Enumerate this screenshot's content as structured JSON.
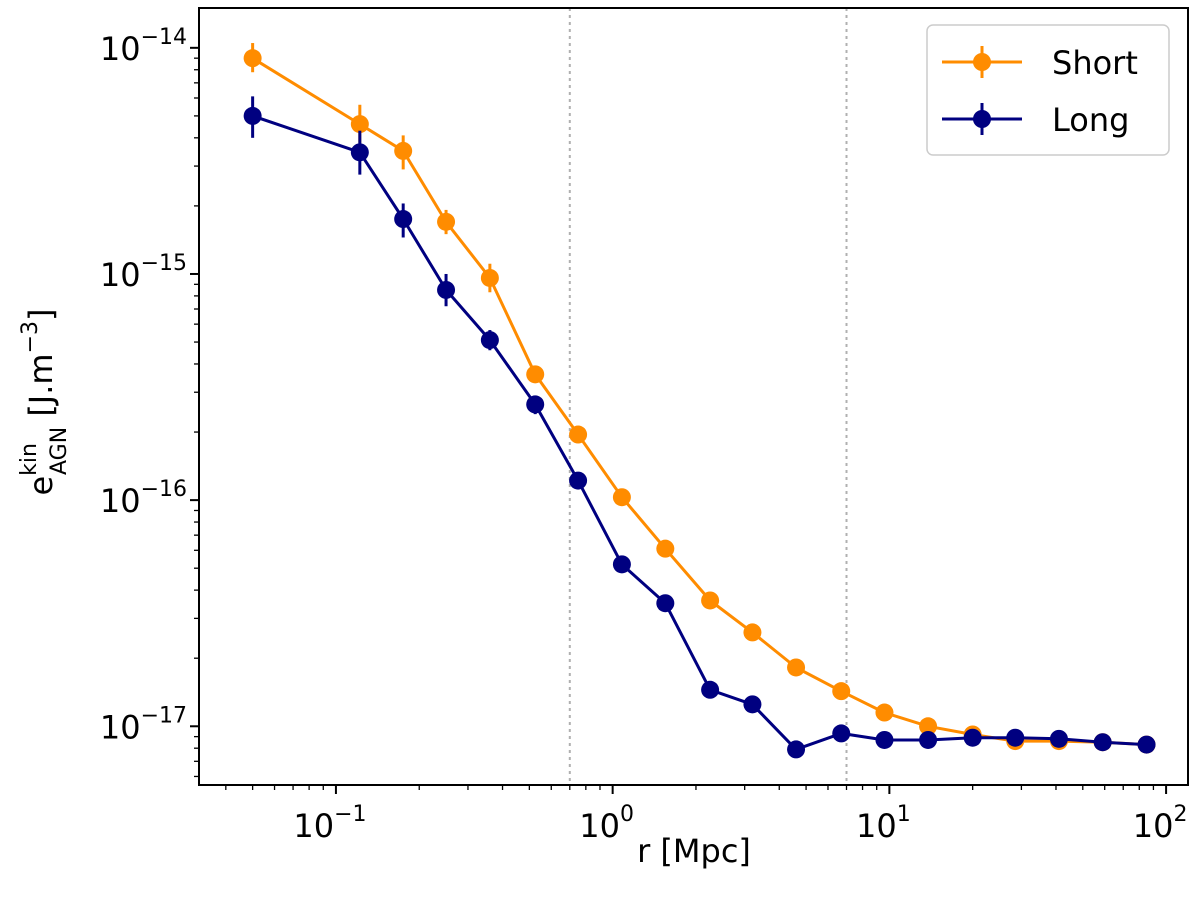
{
  "chart_data": {
    "type": "line",
    "xscale": "log",
    "yscale": "log",
    "xlim": [
      0.032,
      120
    ],
    "ylim": [
      5.5e-18,
      1.5e-14
    ],
    "xlabel": "r [Mpc]",
    "ylabel": {
      "base": "e",
      "sup": "kin",
      "sub": "AGN",
      "unit_prefix": " [J.m",
      "unit_exp": "−3",
      "unit_suffix": "]"
    },
    "x_ticks": [
      {
        "value": 0.1,
        "base": "10",
        "exp": "−1"
      },
      {
        "value": 1,
        "base": "10",
        "exp": "0"
      },
      {
        "value": 10,
        "base": "10",
        "exp": "1"
      },
      {
        "value": 100,
        "base": "10",
        "exp": "2"
      }
    ],
    "y_ticks": [
      {
        "value": 1e-17,
        "base": "10",
        "exp": "−17"
      },
      {
        "value": 1e-16,
        "base": "10",
        "exp": "−16"
      },
      {
        "value": 1e-15,
        "base": "10",
        "exp": "−15"
      },
      {
        "value": 1e-14,
        "base": "10",
        "exp": "−14"
      }
    ],
    "vlines": [
      0.7,
      7.0
    ],
    "legend_position": "top-right",
    "series": [
      {
        "name": "Short",
        "color": "#ff8c00",
        "x": [
          0.05,
          0.122,
          0.175,
          0.25,
          0.36,
          0.525,
          0.75,
          1.08,
          1.55,
          2.25,
          3.2,
          4.6,
          6.7,
          9.6,
          13.8,
          20,
          28.5,
          41,
          59,
          85
        ],
        "y": [
          9e-15,
          4.6e-15,
          3.5e-15,
          1.7e-15,
          9.6e-16,
          3.6e-16,
          1.95e-16,
          1.03e-16,
          6.1e-17,
          3.6e-17,
          2.6e-17,
          1.82e-17,
          1.43e-17,
          1.15e-17,
          1e-17,
          9.2e-18,
          8.6e-18,
          8.6e-18,
          8.5e-18,
          8.3e-18
        ],
        "err_low": [
          7.8e-15,
          3.8e-15,
          2.9e-15,
          1.5e-15,
          8.3e-16,
          null,
          null,
          null,
          null,
          null,
          null,
          null,
          null,
          null,
          null,
          null,
          null,
          null,
          null,
          null
        ],
        "err_high": [
          1.05e-14,
          5.6e-15,
          4.1e-15,
          1.92e-15,
          1.11e-15,
          null,
          null,
          null,
          null,
          null,
          null,
          null,
          null,
          null,
          null,
          null,
          null,
          null,
          null,
          null
        ]
      },
      {
        "name": "Long",
        "color": "#000080",
        "x": [
          0.05,
          0.122,
          0.175,
          0.25,
          0.36,
          0.525,
          0.75,
          1.08,
          1.55,
          2.25,
          3.2,
          4.6,
          6.7,
          9.6,
          13.8,
          20,
          28.5,
          41,
          59,
          85
        ],
        "y": [
          5e-15,
          3.45e-15,
          1.75e-15,
          8.5e-16,
          5.1e-16,
          2.65e-16,
          1.22e-16,
          5.2e-17,
          3.5e-17,
          1.45e-17,
          1.25e-17,
          7.9e-18,
          9.3e-18,
          8.7e-18,
          8.7e-18,
          8.9e-18,
          8.9e-18,
          8.8e-18,
          8.5e-18,
          8.3e-18
        ],
        "err_low": [
          4e-15,
          2.75e-15,
          1.45e-15,
          7.2e-16,
          4.6e-16,
          2.4e-16,
          null,
          null,
          null,
          null,
          null,
          null,
          null,
          null,
          null,
          null,
          null,
          null,
          null,
          null
        ],
        "err_high": [
          6.1e-15,
          4.3e-15,
          2.05e-15,
          1e-15,
          5.65e-16,
          2.9e-16,
          null,
          null,
          null,
          null,
          null,
          null,
          null,
          null,
          null,
          null,
          null,
          null,
          null,
          null
        ]
      }
    ]
  }
}
